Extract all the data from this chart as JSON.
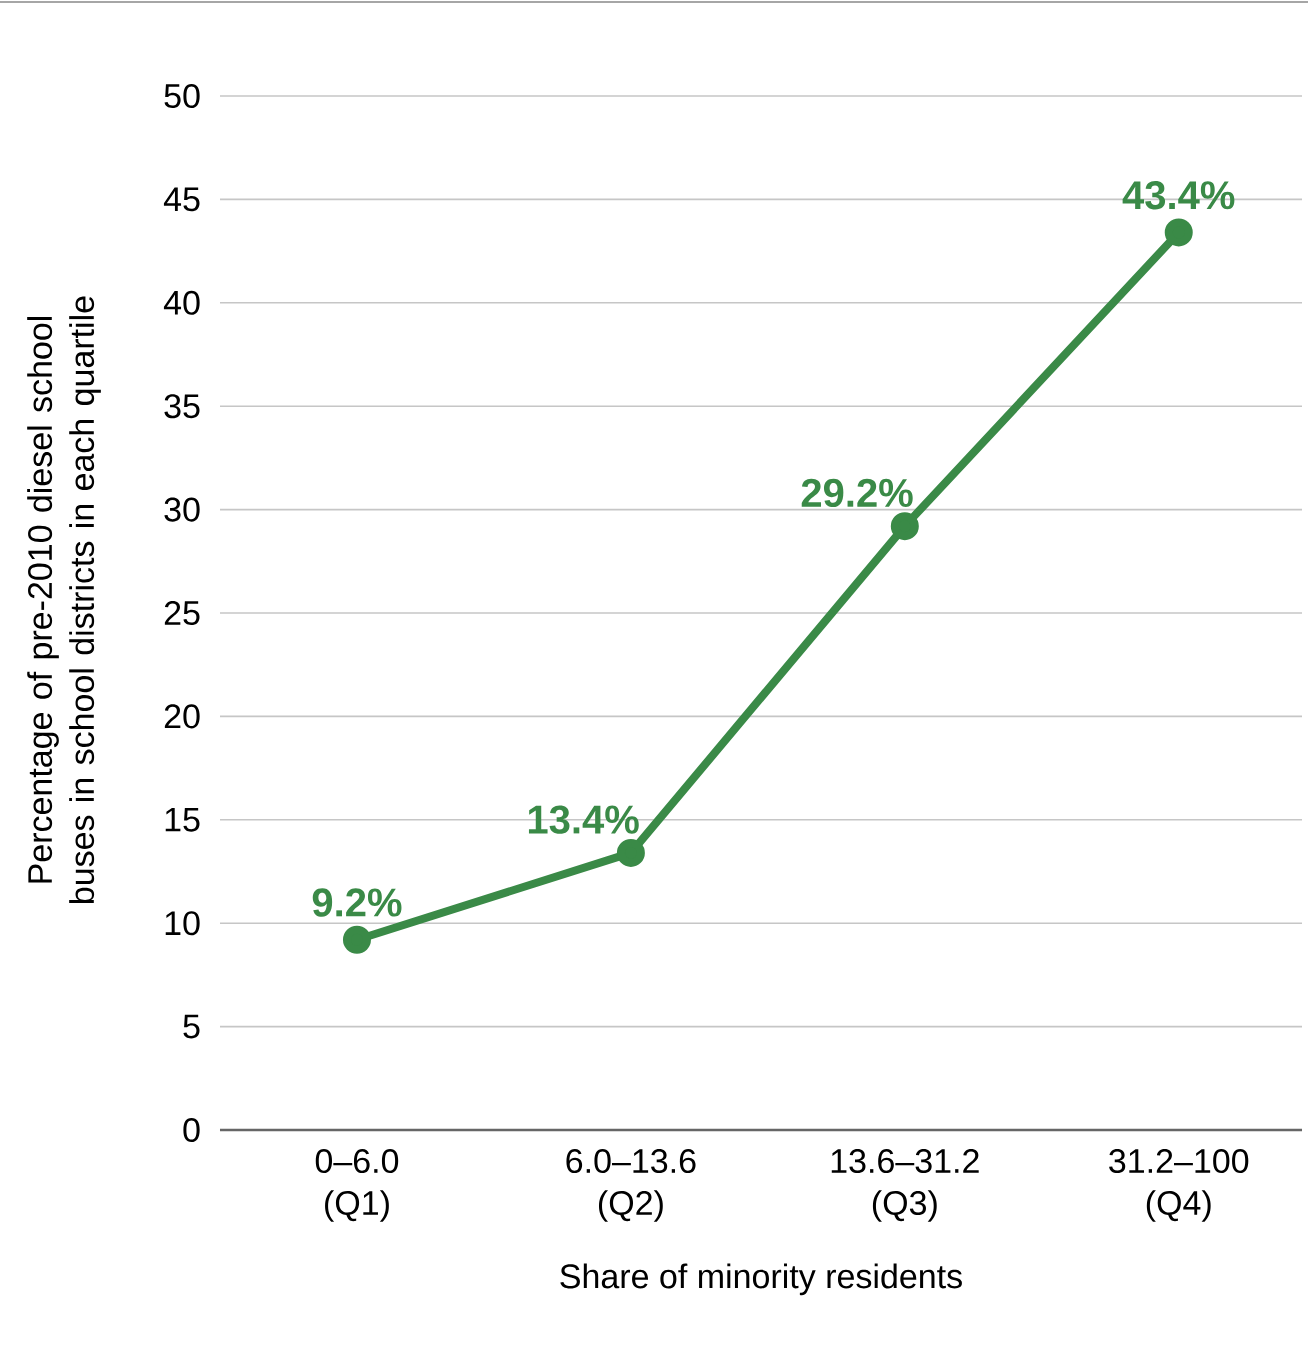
{
  "chart_data": {
    "type": "line",
    "xlabel": "Share of minority residents",
    "ylabel": "Percentage  of pre-2010 diesel school buses in school districts in each quartile",
    "categories": [
      "0–6.0 (Q1)",
      "6.0–13.6 (Q2)",
      "13.6–31.2 (Q3)",
      "31.2–100 (Q4)"
    ],
    "series": [
      {
        "color": "#3a8a47",
        "values": [
          9.2,
          13.4,
          29.2,
          43.4
        ],
        "value_labels": [
          "9.2%",
          "13.4%",
          "29.2%",
          "43.4%"
        ]
      }
    ],
    "ylim": [
      0,
      50
    ],
    "yticks": [
      0,
      5,
      10,
      15,
      20,
      25,
      30,
      35,
      40,
      45,
      50
    ],
    "grid": "y",
    "marker": "circle",
    "line_style": "solid"
  }
}
